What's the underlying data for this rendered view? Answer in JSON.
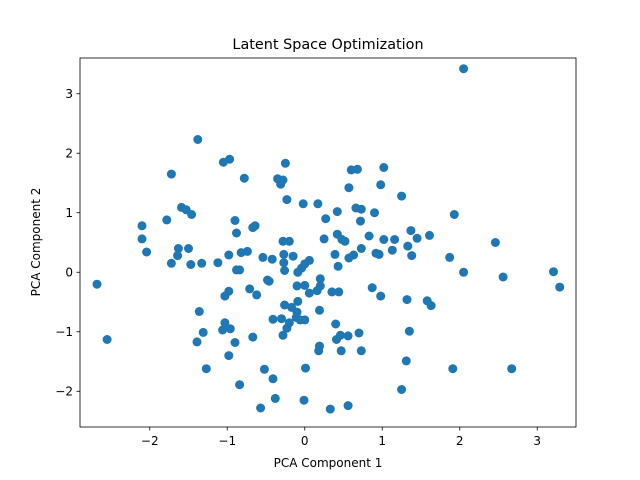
{
  "chart_data": {
    "type": "scatter",
    "title": "Latent Space Optimization",
    "xlabel": "PCA Component 1",
    "ylabel": "PCA Component 2",
    "xlim": [
      -2.9,
      3.5
    ],
    "ylim": [
      -2.6,
      3.6
    ],
    "xticks": [
      -2,
      -1,
      0,
      1,
      2,
      3
    ],
    "yticks": [
      -2,
      -1,
      0,
      1,
      2,
      3
    ],
    "xtick_labels": [
      "−2",
      "−1",
      "0",
      "1",
      "2",
      "3"
    ],
    "ytick_labels": [
      "−2",
      "−1",
      "0",
      "1",
      "2",
      "3"
    ],
    "grid": false,
    "color": "#1f77b4",
    "points": [
      [
        2.05,
        3.42
      ],
      [
        -1.38,
        2.23
      ],
      [
        -0.97,
        1.9
      ],
      [
        -1.05,
        1.85
      ],
      [
        -0.25,
        1.83
      ],
      [
        -1.72,
        1.65
      ],
      [
        -0.78,
        1.58
      ],
      [
        -0.35,
        1.57
      ],
      [
        -0.28,
        1.55
      ],
      [
        -0.31,
        1.48
      ],
      [
        0.6,
        1.72
      ],
      [
        0.68,
        1.73
      ],
      [
        1.02,
        1.76
      ],
      [
        0.57,
        1.42
      ],
      [
        0.98,
        1.47
      ],
      [
        1.25,
        1.28
      ],
      [
        -0.23,
        1.22
      ],
      [
        -0.02,
        1.15
      ],
      [
        0.17,
        1.15
      ],
      [
        0.66,
        1.08
      ],
      [
        0.73,
        1.06
      ],
      [
        0.42,
        1.02
      ],
      [
        0.9,
        1.0
      ],
      [
        1.93,
        0.97
      ],
      [
        0.27,
        0.9
      ],
      [
        -1.59,
        1.09
      ],
      [
        -1.53,
        1.05
      ],
      [
        -1.46,
        0.97
      ],
      [
        -1.78,
        0.88
      ],
      [
        -0.9,
        0.87
      ],
      [
        -0.64,
        0.78
      ],
      [
        -0.67,
        0.75
      ],
      [
        -2.1,
        0.78
      ],
      [
        -2.1,
        0.56
      ],
      [
        -2.04,
        0.34
      ],
      [
        -0.88,
        0.66
      ],
      [
        -0.2,
        0.52
      ],
      [
        -0.28,
        0.52
      ],
      [
        0.25,
        0.56
      ],
      [
        0.42,
        0.64
      ],
      [
        0.48,
        0.55
      ],
      [
        0.52,
        0.52
      ],
      [
        0.72,
        0.86
      ],
      [
        0.83,
        0.61
      ],
      [
        1.02,
        0.55
      ],
      [
        1.16,
        0.55
      ],
      [
        1.37,
        0.7
      ],
      [
        1.45,
        0.57
      ],
      [
        1.61,
        0.62
      ],
      [
        2.46,
        0.5
      ],
      [
        -1.63,
        0.4
      ],
      [
        -1.64,
        0.28
      ],
      [
        -1.5,
        0.4
      ],
      [
        -1.72,
        0.15
      ],
      [
        -1.47,
        0.13
      ],
      [
        -1.33,
        0.15
      ],
      [
        -1.12,
        0.16
      ],
      [
        -0.98,
        0.29
      ],
      [
        -0.82,
        0.33
      ],
      [
        -0.74,
        0.35
      ],
      [
        -0.54,
        0.25
      ],
      [
        -0.42,
        0.22
      ],
      [
        -0.27,
        0.3
      ],
      [
        -0.15,
        0.27
      ],
      [
        -0.27,
        0.16
      ],
      [
        -0.88,
        0.04
      ],
      [
        -0.84,
        0.04
      ],
      [
        -0.71,
        -0.28
      ],
      [
        -0.62,
        -0.38
      ],
      [
        -0.48,
        -0.13
      ],
      [
        -0.46,
        -0.15
      ],
      [
        -0.26,
        0.03
      ],
      [
        -0.09,
        0.0
      ],
      [
        -0.04,
        0.07
      ],
      [
        0.06,
        0.2
      ],
      [
        0.0,
        0.14
      ],
      [
        0.39,
        0.3
      ],
      [
        0.43,
        0.1
      ],
      [
        0.57,
        0.24
      ],
      [
        0.63,
        0.29
      ],
      [
        0.73,
        0.4
      ],
      [
        0.92,
        0.32
      ],
      [
        0.96,
        0.3
      ],
      [
        1.13,
        0.37
      ],
      [
        1.33,
        0.44
      ],
      [
        1.38,
        0.28
      ],
      [
        1.87,
        0.25
      ],
      [
        2.05,
        0.0
      ],
      [
        2.56,
        -0.08
      ],
      [
        3.21,
        0.01
      ],
      [
        3.29,
        -0.25
      ],
      [
        -2.68,
        -0.2
      ],
      [
        -2.55,
        -1.13
      ],
      [
        -0.98,
        -0.32
      ],
      [
        -1.03,
        -0.4
      ],
      [
        -1.36,
        -0.66
      ],
      [
        -1.31,
        -1.01
      ],
      [
        -1.06,
        -0.97
      ],
      [
        -1.03,
        -0.85
      ],
      [
        -0.96,
        -0.95
      ],
      [
        -0.98,
        -1.4
      ],
      [
        -0.9,
        -1.18
      ],
      [
        -1.39,
        -1.17
      ],
      [
        -1.27,
        -1.62
      ],
      [
        -0.84,
        -1.89
      ],
      [
        -0.67,
        -1.09
      ],
      [
        -0.41,
        -0.79
      ],
      [
        -0.26,
        -0.55
      ],
      [
        -0.17,
        -0.59
      ],
      [
        -0.09,
        -0.49
      ],
      [
        -0.1,
        -0.67
      ],
      [
        -0.11,
        -0.76
      ],
      [
        -0.2,
        -0.85
      ],
      [
        -0.3,
        -0.78
      ],
      [
        -0.23,
        -0.94
      ],
      [
        -0.28,
        -1.06
      ],
      [
        -0.06,
        -0.8
      ],
      [
        0.0,
        -0.8
      ],
      [
        -0.1,
        -0.23
      ],
      [
        0.0,
        -0.22
      ],
      [
        0.06,
        -0.35
      ],
      [
        0.2,
        -0.23
      ],
      [
        0.2,
        -0.11
      ],
      [
        0.16,
        -0.31
      ],
      [
        0.35,
        -0.33
      ],
      [
        0.44,
        -0.33
      ],
      [
        0.19,
        -0.64
      ],
      [
        0.4,
        -0.87
      ],
      [
        0.56,
        -1.07
      ],
      [
        0.46,
        -1.06
      ],
      [
        0.7,
        -1.02
      ],
      [
        0.41,
        -1.13
      ],
      [
        0.47,
        -1.32
      ],
      [
        0.19,
        -1.24
      ],
      [
        0.18,
        -1.32
      ],
      [
        0.73,
        -1.32
      ],
      [
        0.87,
        -0.26
      ],
      [
        0.98,
        -0.4
      ],
      [
        1.32,
        -0.46
      ],
      [
        1.35,
        -0.99
      ],
      [
        1.58,
        -0.48
      ],
      [
        1.63,
        -0.56
      ],
      [
        1.31,
        -1.49
      ],
      [
        1.25,
        -1.97
      ],
      [
        1.91,
        -1.62
      ],
      [
        2.67,
        -1.62
      ],
      [
        -0.52,
        -1.63
      ],
      [
        -0.41,
        -1.79
      ],
      [
        -0.38,
        -2.12
      ],
      [
        -0.57,
        -2.28
      ],
      [
        -0.01,
        -2.15
      ],
      [
        0.01,
        -1.61
      ],
      [
        0.33,
        -2.3
      ],
      [
        0.56,
        -2.24
      ]
    ]
  }
}
